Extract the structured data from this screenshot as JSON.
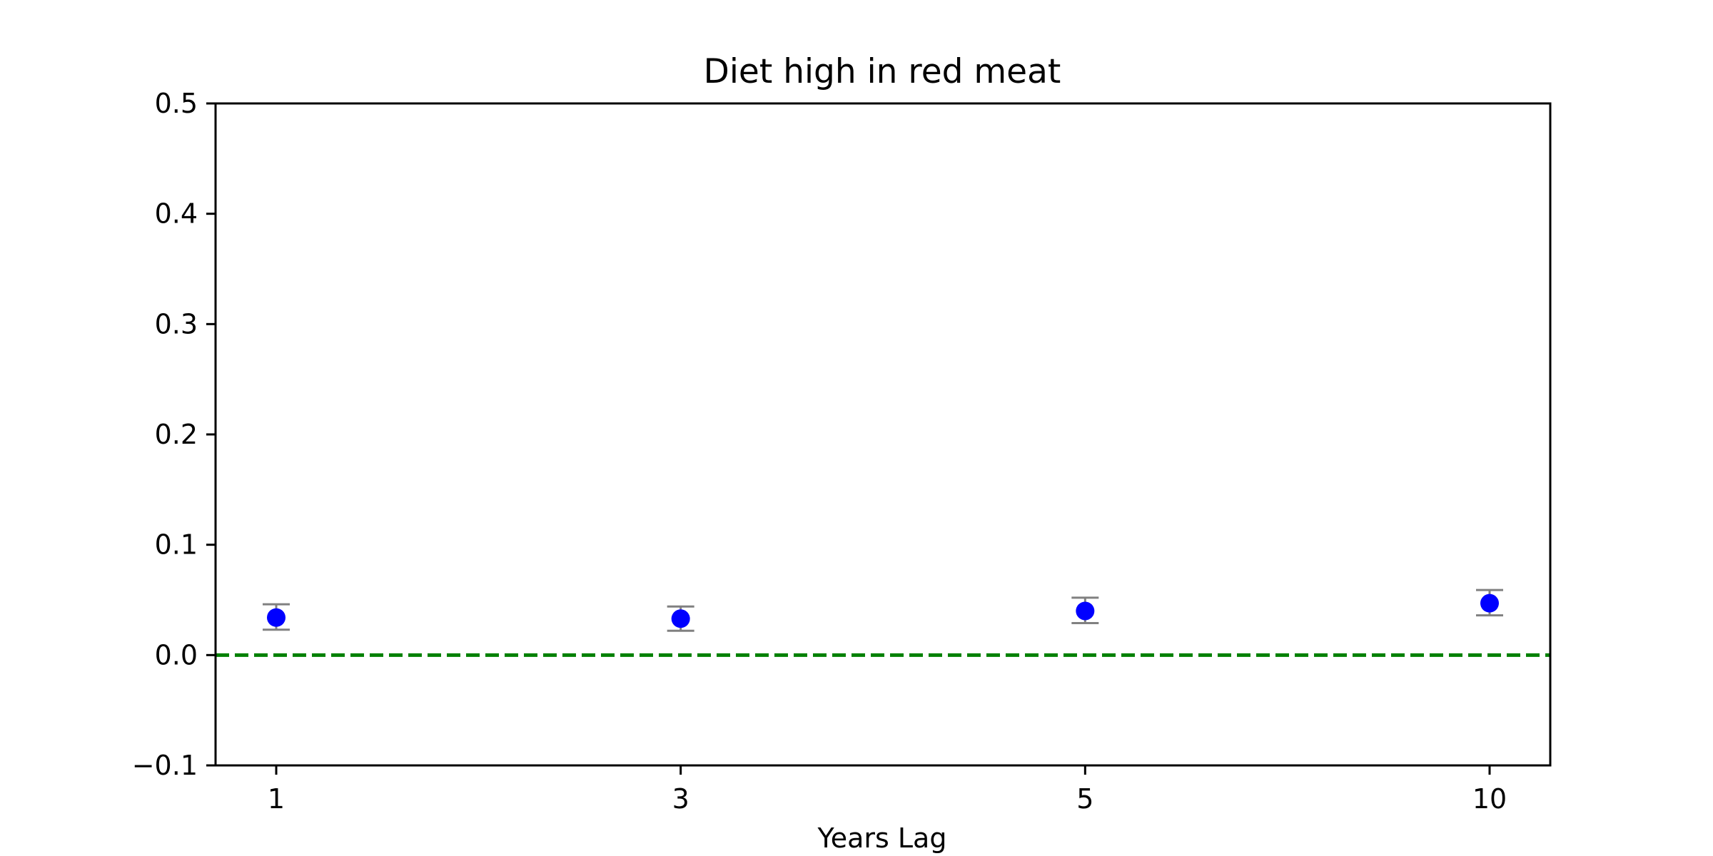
{
  "chart_data": {
    "type": "scatter",
    "title": "Diet high in red meat",
    "xlabel": "Years Lag",
    "ylabel": "",
    "categories": [
      "1",
      "3",
      "5",
      "10"
    ],
    "series": [
      {
        "values": [
          0.034,
          0.033,
          0.04,
          0.047
        ],
        "error_low": [
          0.023,
          0.022,
          0.029,
          0.036
        ],
        "error_high": [
          0.046,
          0.044,
          0.052,
          0.059
        ],
        "marker_color": "#0000ff",
        "errorbar_color": "#808080"
      }
    ],
    "ylim": [
      -0.1,
      0.5
    ],
    "yticks": [
      -0.1,
      0.0,
      0.1,
      0.2,
      0.3,
      0.4,
      0.5
    ],
    "ytick_labels": [
      "−0.1",
      "0.0",
      "0.1",
      "0.2",
      "0.3",
      "0.4",
      "0.5"
    ],
    "reference_line": {
      "y": 0.0,
      "style": "dashed",
      "color": "#008000"
    },
    "grid": false,
    "legend": "none"
  }
}
